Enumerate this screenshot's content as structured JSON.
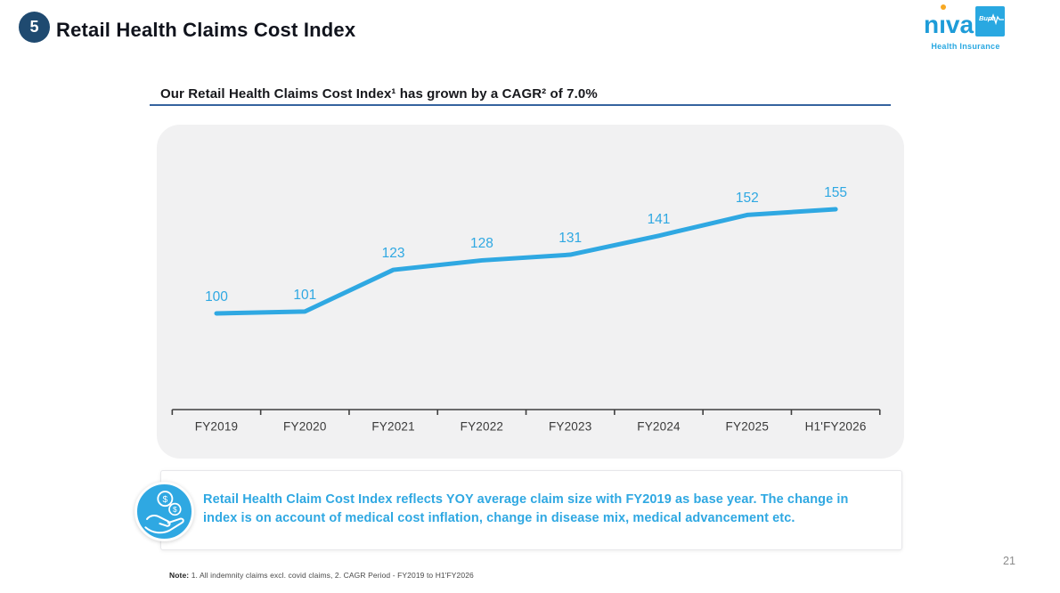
{
  "meta": {
    "page_number": "21"
  },
  "header": {
    "slide_number": "5",
    "title": "Retail Health Claims Cost Index"
  },
  "logo": {
    "brand": "niva",
    "box_label": "Bupa",
    "tagline": "Health Insurance",
    "brand_color": "#1E9CD8",
    "box_color": "#29A8E1",
    "dot_color": "#F7A823"
  },
  "subtitle": {
    "text": "Our Retail Health Claims Cost Index¹ has grown by a CAGR² of 7.0%"
  },
  "chart_data": {
    "type": "line",
    "title": "Our Retail Health Claims Cost Index has grown by a CAGR of 7.0%",
    "series_name": "Retail Health Claims Cost Index",
    "categories": [
      "FY2019",
      "FY2020",
      "FY2021",
      "FY2022",
      "FY2023",
      "FY2024",
      "FY2025",
      "H1'FY2026"
    ],
    "values": [
      100,
      101,
      123,
      128,
      131,
      141,
      152,
      155
    ],
    "baseline_value": 100,
    "cagr": "7.0%",
    "data_labels": true,
    "grid": false,
    "legend": "none",
    "ylim": [
      90,
      165
    ],
    "line_color": "#2FA8E2",
    "label_color": "#2FA8E2",
    "axis_color": "#3F3F3F",
    "panel_bg": "#F1F1F2"
  },
  "callout": {
    "icon": "hand-holding-coins",
    "text": "Retail Health Claim Cost Index reflects YOY average claim size with FY2019 as base year. The change in index is on account of medical cost inflation, change in disease mix, medical advancement etc."
  },
  "footnote": {
    "label": "Note:",
    "text": " 1. All indemnity claims excl. covid claims, 2. CAGR Period - FY2019 to H1'FY2026"
  },
  "colors": {
    "accent_blue": "#2FA8E2",
    "navy": "#1F4A70",
    "underline_blue": "#35639E"
  }
}
